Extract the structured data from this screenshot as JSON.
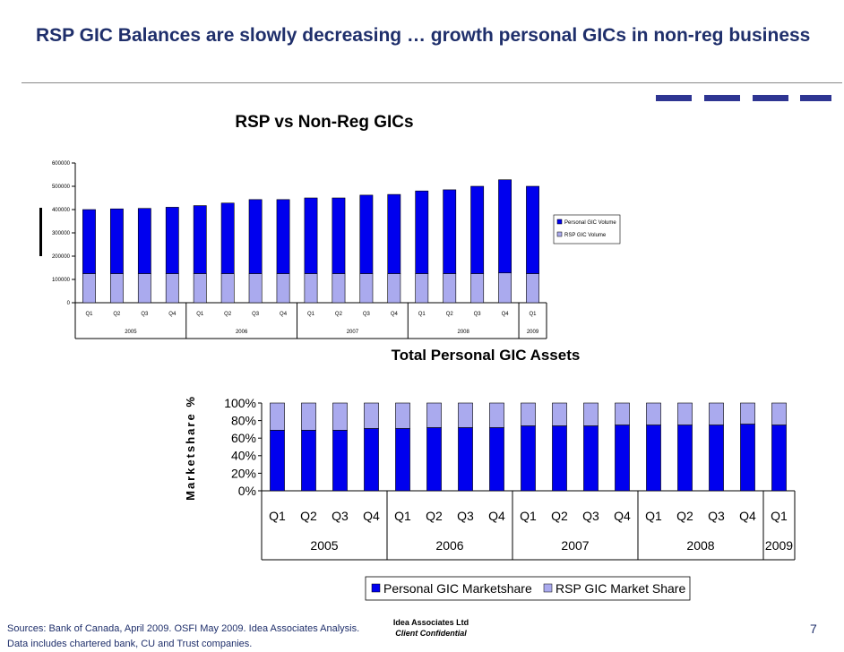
{
  "header": {
    "title": "RSP GIC Balances are slowly decreasing … growth personal GICs in non-reg business"
  },
  "footer": {
    "sources": "Sources: Bank of Canada, April 2009. OSFI May 2009. Idea Associates Analysis. Data includes chartered bank, CU and Trust companies.",
    "company": "Idea Associates Ltd",
    "confidential": "Client Confidential",
    "page_number": "7"
  },
  "colors": {
    "personal": "#0000ee",
    "rsp": "#aaaaee",
    "title": "#1f2f6b",
    "accent": "#2e3592"
  },
  "chart_data": [
    {
      "type": "bar",
      "stacked": true,
      "title": "RSP vs Non-Reg GICs",
      "xlabel": "",
      "ylabel": "",
      "categories": [
        "Q1",
        "Q2",
        "Q3",
        "Q4",
        "Q1",
        "Q2",
        "Q3",
        "Q4",
        "Q1",
        "Q2",
        "Q3",
        "Q4",
        "Q1",
        "Q2",
        "Q3",
        "Q4",
        "Q1"
      ],
      "year_groups": [
        {
          "label": "2005",
          "count": 4
        },
        {
          "label": "2006",
          "count": 4
        },
        {
          "label": "2007",
          "count": 4
        },
        {
          "label": "2008",
          "count": 4
        },
        {
          "label": "2009",
          "count": 1
        }
      ],
      "series": [
        {
          "name": "RSP GIC Volume",
          "values": [
            125000,
            125000,
            125000,
            125000,
            125000,
            125000,
            125000,
            125000,
            125000,
            125000,
            125000,
            125000,
            125000,
            125000,
            125000,
            128000,
            125000
          ]
        },
        {
          "name": "Personal GIC Volume",
          "values": [
            275000,
            278000,
            280000,
            285000,
            292000,
            303000,
            318000,
            318000,
            325000,
            325000,
            337000,
            340000,
            355000,
            360000,
            375000,
            400000,
            375000
          ]
        }
      ],
      "ylim": [
        0,
        600000
      ],
      "yticks": [
        "0",
        "100000",
        "200000",
        "300000",
        "400000",
        "500000",
        "600000"
      ],
      "legend": "right",
      "grid": false
    },
    {
      "type": "bar",
      "stacked": true,
      "title": "Total Personal GIC Assets",
      "xlabel": "",
      "ylabel": "Marketshare %",
      "categories": [
        "Q1",
        "Q2",
        "Q3",
        "Q4",
        "Q1",
        "Q2",
        "Q3",
        "Q4",
        "Q1",
        "Q2",
        "Q3",
        "Q4",
        "Q1",
        "Q2",
        "Q3",
        "Q4",
        "Q1"
      ],
      "year_groups": [
        {
          "label": "2005",
          "count": 4
        },
        {
          "label": "2006",
          "count": 4
        },
        {
          "label": "2007",
          "count": 4
        },
        {
          "label": "2008",
          "count": 4
        },
        {
          "label": "2009",
          "count": 1
        }
      ],
      "series": [
        {
          "name": "Personal GIC Marketshare",
          "values": [
            69,
            69,
            69,
            71,
            71,
            72,
            72,
            72,
            74,
            74,
            74,
            75,
            75,
            75,
            75,
            76,
            75
          ]
        },
        {
          "name": "RSP GIC Market Share",
          "values": [
            31,
            31,
            31,
            29,
            29,
            28,
            28,
            28,
            26,
            26,
            26,
            25,
            25,
            25,
            25,
            24,
            25
          ]
        }
      ],
      "ylim": [
        0,
        100
      ],
      "yticks": [
        "0%",
        "20%",
        "40%",
        "60%",
        "80%",
        "100%"
      ],
      "legend": "bottom",
      "grid": false
    }
  ]
}
